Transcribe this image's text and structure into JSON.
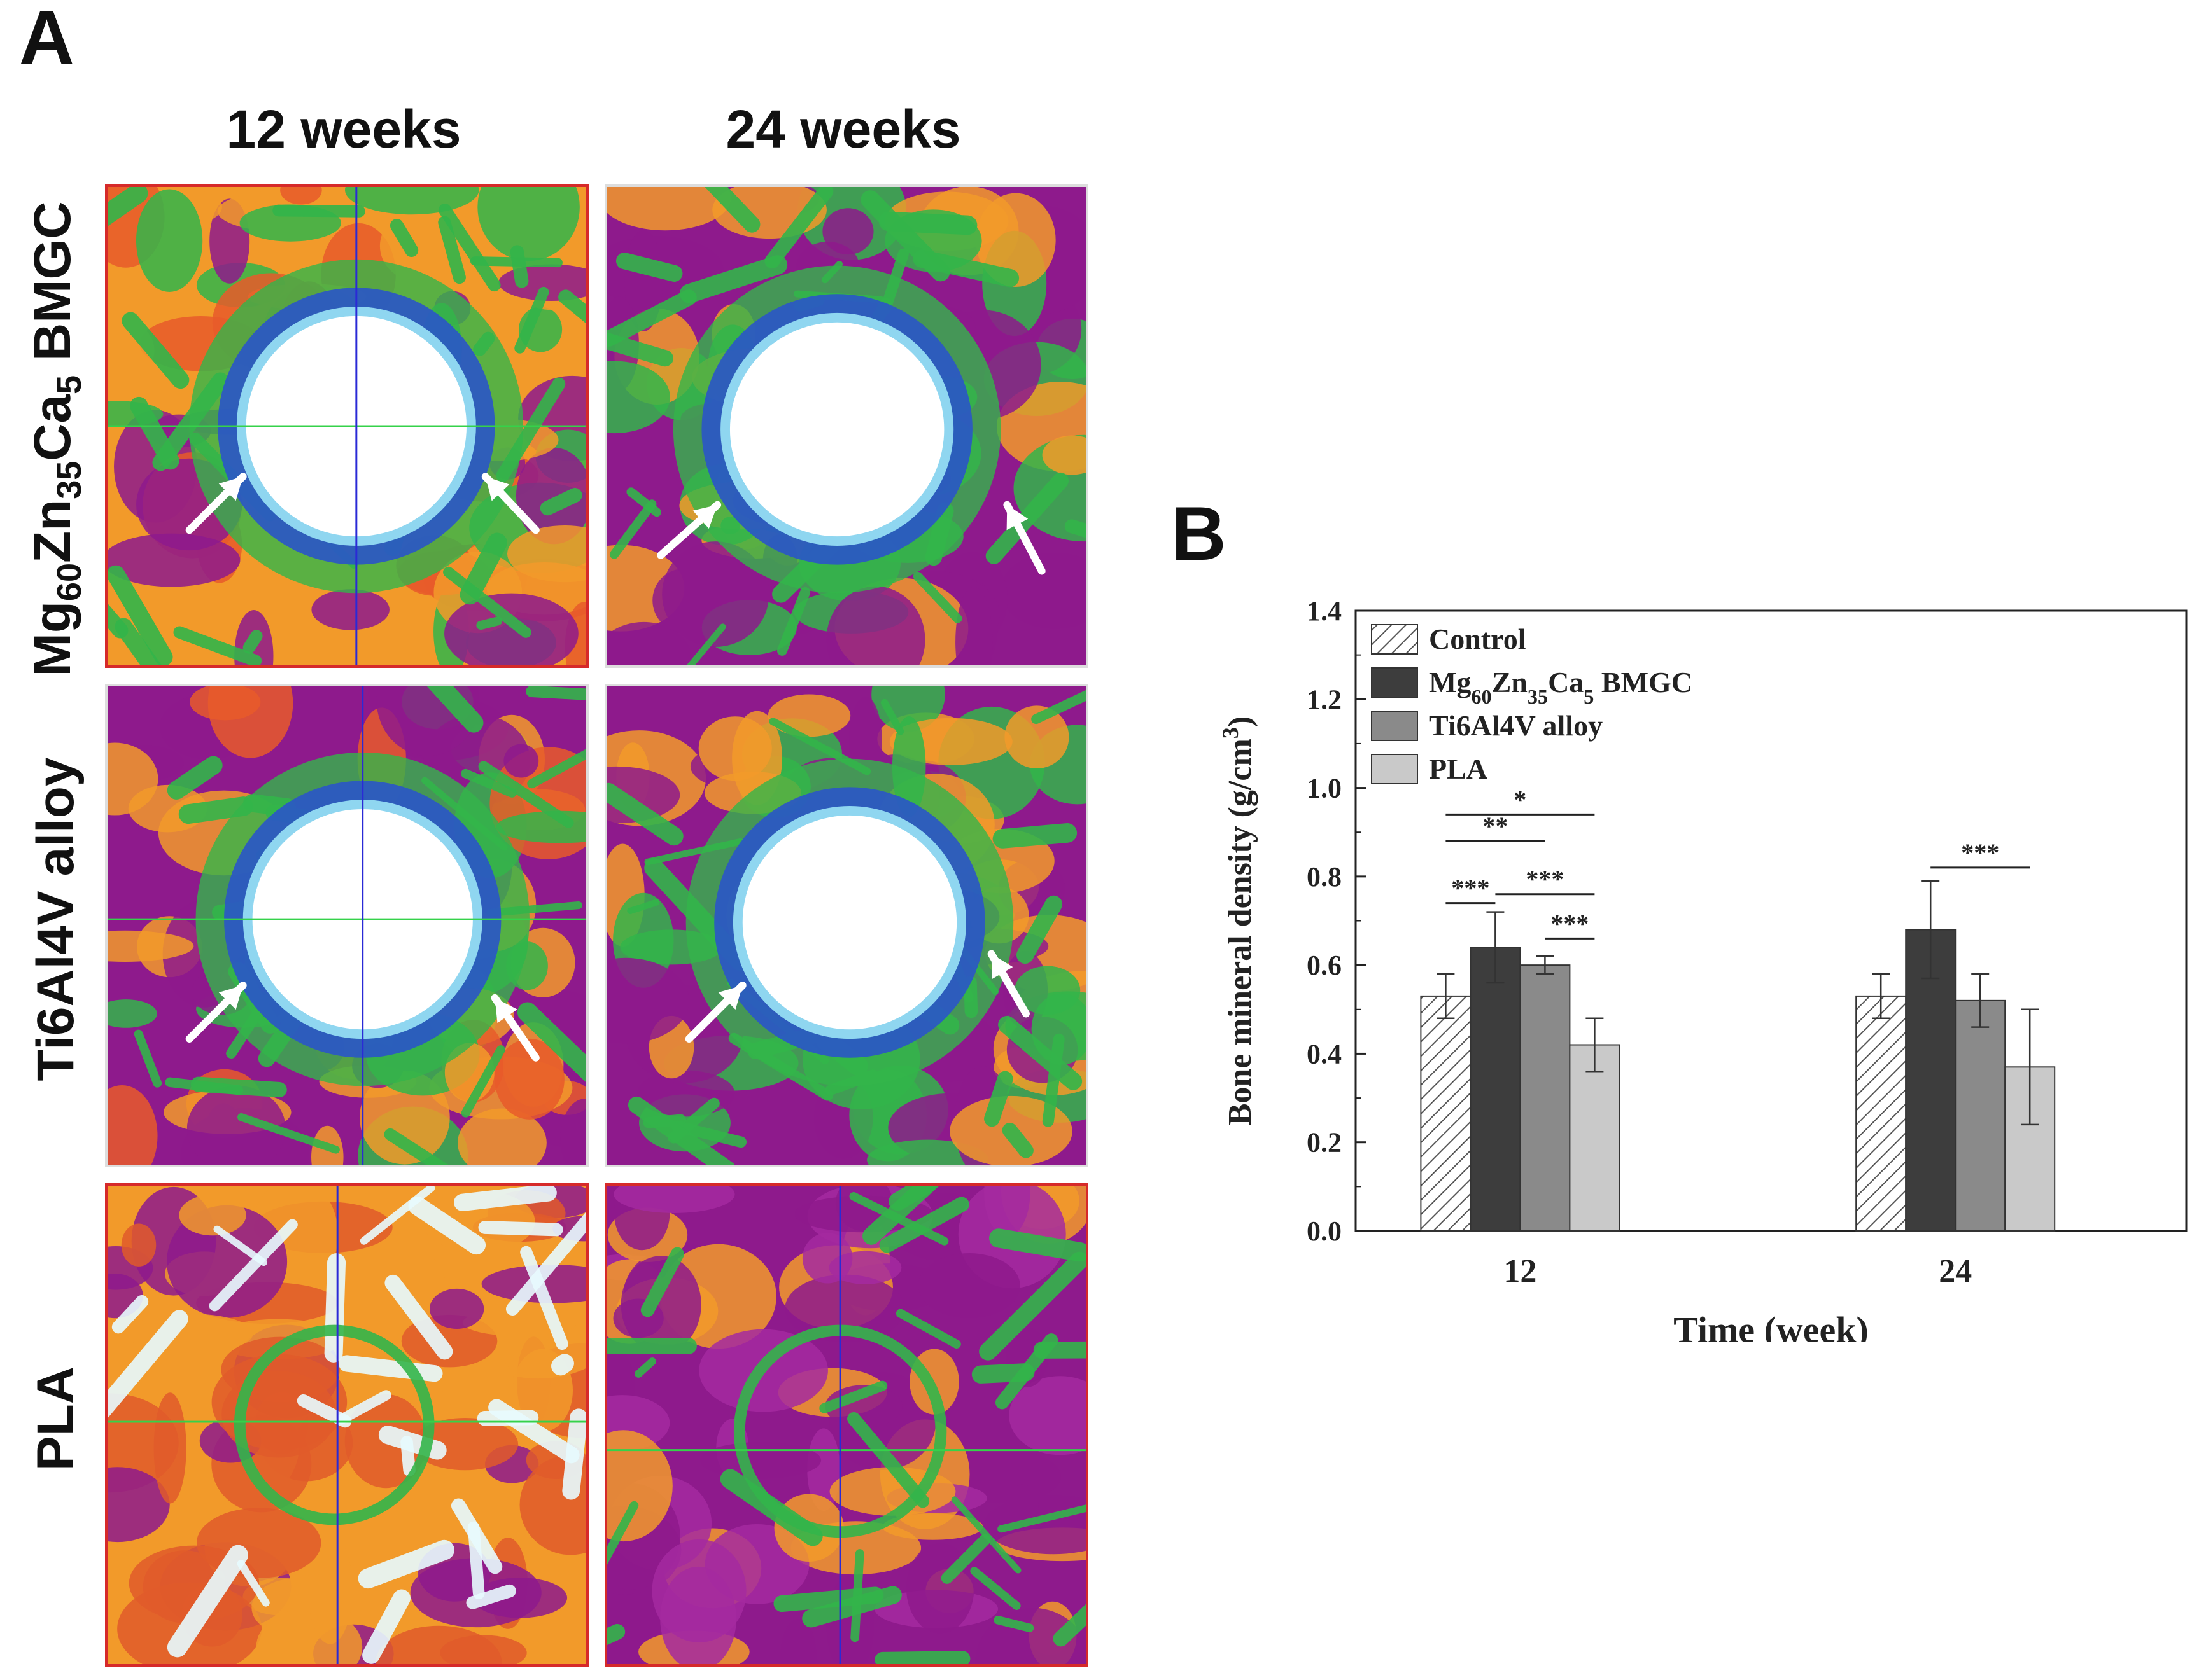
{
  "panel_a": {
    "letter": "A",
    "columns": [
      "12 weeks",
      "24 weeks"
    ],
    "rows": [
      {
        "label_html": "Mg<sub>60</sub>Zn<sub>35</sub>Ca<sub>5</sub> BMGC",
        "label_text": "Mg60Zn35Ca5 BMGC"
      },
      {
        "label_html": "Ti6Al4V alloy",
        "label_text": "Ti6Al4V alloy"
      },
      {
        "label_html": "PLA",
        "label_text": "PLA"
      }
    ]
  },
  "panel_b": {
    "letter": "B"
  },
  "colors": {
    "control_fill": "#ffffff",
    "bmgc_fill": "#3d3d3d",
    "ti_fill": "#8a8a8a",
    "pla_fill": "#c9c9c9",
    "map_magenta": "#8e1a8c",
    "map_orange": "#f29a2a",
    "map_green": "#33b54a",
    "map_blue": "#2a55c8",
    "map_cyan": "#8fd6f0",
    "crosshair_green": "#35d24a",
    "crosshair_blue": "#2a2ad6",
    "tile_border": "#d62a2a"
  },
  "chart_data": {
    "type": "bar",
    "title": "",
    "xlabel": "Time (week)",
    "ylabel_text": "Bone mineral density (g/cm3)",
    "ylabel_html": "Bone mineral density (g/cm<tspan baseline-shift='super' font-size='70%'>3</tspan>)",
    "categories": [
      "12",
      "24"
    ],
    "ylim": [
      0.0,
      1.4
    ],
    "yticks": [
      "0.0",
      "0.2",
      "0.4",
      "0.6",
      "0.8",
      "1.0",
      "1.2",
      "1.4"
    ],
    "legend_position": "top-left",
    "series": [
      {
        "name": "Control",
        "legend_html": "Control",
        "pattern": "hatch",
        "values": [
          0.53,
          0.53
        ],
        "errors": [
          0.05,
          0.05
        ]
      },
      {
        "name": "Mg60Zn35Ca5 BMGC",
        "legend_html": "Mg<tspan baseline-shift='sub' font-size='70%'>60</tspan>Zn<tspan baseline-shift='sub' font-size='70%'>35</tspan>Ca<tspan baseline-shift='sub' font-size='70%'>5</tspan> BMGC",
        "pattern": "solid",
        "values": [
          0.64,
          0.68
        ],
        "errors": [
          0.08,
          0.11
        ]
      },
      {
        "name": "Ti6Al4V alloy",
        "legend_html": "Ti6Al4V alloy",
        "pattern": "solid",
        "values": [
          0.6,
          0.52
        ],
        "errors": [
          0.02,
          0.06
        ]
      },
      {
        "name": "PLA",
        "legend_html": "PLA",
        "pattern": "solid",
        "values": [
          0.42,
          0.37
        ],
        "errors": [
          0.06,
          0.13
        ]
      }
    ],
    "significance": [
      {
        "category": 0,
        "from": 0,
        "to": 1,
        "level": 0.74,
        "label": "***"
      },
      {
        "category": 0,
        "from": 0,
        "to": 2,
        "level": 0.88,
        "label": "**"
      },
      {
        "category": 0,
        "from": 0,
        "to": 3,
        "level": 0.94,
        "label": "*"
      },
      {
        "category": 0,
        "from": 1,
        "to": 3,
        "level": 0.76,
        "label": "***"
      },
      {
        "category": 0,
        "from": 2,
        "to": 3,
        "level": 0.66,
        "label": "***"
      },
      {
        "category": 1,
        "from": 1,
        "to": 3,
        "level": 0.82,
        "label": "***"
      }
    ]
  }
}
